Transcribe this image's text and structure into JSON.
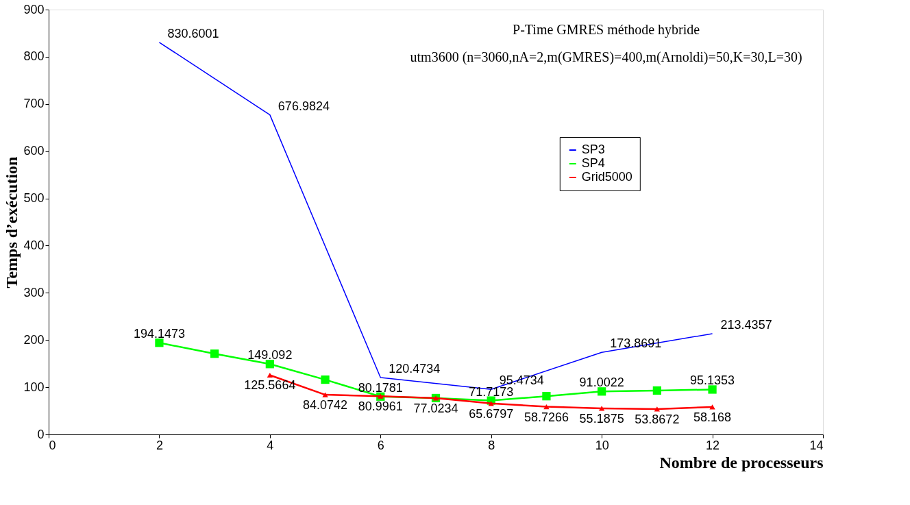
{
  "chart_data": {
    "type": "line",
    "xlabel": "Nombre de processeurs",
    "ylabel": "Temps d’exécution",
    "annotations": [
      "P-Time GMRES méthode hybride",
      "utm3600 (n=3060,nA=2,m(GMRES)=400,m(Arnoldi)=50,K=30,L=30)"
    ],
    "xlim": [
      0,
      14
    ],
    "xticks": [
      0,
      2,
      4,
      6,
      8,
      10,
      12,
      14
    ],
    "ylim": [
      0,
      900
    ],
    "yticks": [
      0,
      100,
      200,
      300,
      400,
      500,
      600,
      700,
      800,
      900
    ],
    "grid": false,
    "legend": "right",
    "series": [
      {
        "name": "SP3",
        "color": "#0000ff",
        "marker": "none",
        "x": [
          2,
          4,
          6,
          8,
          10,
          12
        ],
        "values": [
          830.6001,
          676.9824,
          120.4734,
          95.4734,
          173.8691,
          213.4357
        ],
        "value_labels": [
          "830.6001",
          "676.9824",
          "120.4734",
          "95.4734",
          "173.8691",
          "213.4357"
        ]
      },
      {
        "name": "SP4",
        "color": "#00ff00",
        "marker": "square",
        "x": [
          2,
          3,
          4,
          5,
          6,
          7,
          8,
          9,
          10,
          11,
          12
        ],
        "values": [
          194.1473,
          171,
          149.092,
          116,
          80.1781,
          77,
          71.7173,
          81,
          91.0022,
          93,
          95.1353
        ],
        "value_labels": [
          "194.1473",
          null,
          "149.092",
          null,
          "80.1781",
          null,
          "71.7173",
          null,
          "91.0022",
          null,
          "95.1353"
        ]
      },
      {
        "name": "Grid5000",
        "color": "#ff0000",
        "marker": "triangle",
        "x": [
          4,
          5,
          6,
          7,
          8,
          9,
          10,
          11,
          12
        ],
        "values": [
          125.5664,
          84.0742,
          80.9961,
          77.0234,
          65.6797,
          58.7266,
          55.1875,
          53.8672,
          58.168
        ],
        "value_labels": [
          "125.5664",
          "84.0742",
          "80.9961",
          "77.0234",
          "65.6797",
          "58.7266",
          "55.1875",
          "53.8672",
          "58.168"
        ]
      }
    ]
  }
}
